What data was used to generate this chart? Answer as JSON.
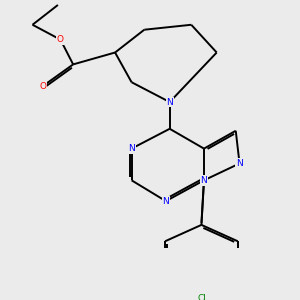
{
  "background_color": "#ebebeb",
  "bond_color": "#000000",
  "N_color": "#0000ff",
  "O_color": "#ff0000",
  "Cl_color": "#008000",
  "line_width": 1.4,
  "dbo": 0.08,
  "fig_w": 3.0,
  "fig_h": 3.0,
  "dpi": 100,
  "xlim": [
    0,
    10
  ],
  "ylim": [
    0,
    10
  ]
}
